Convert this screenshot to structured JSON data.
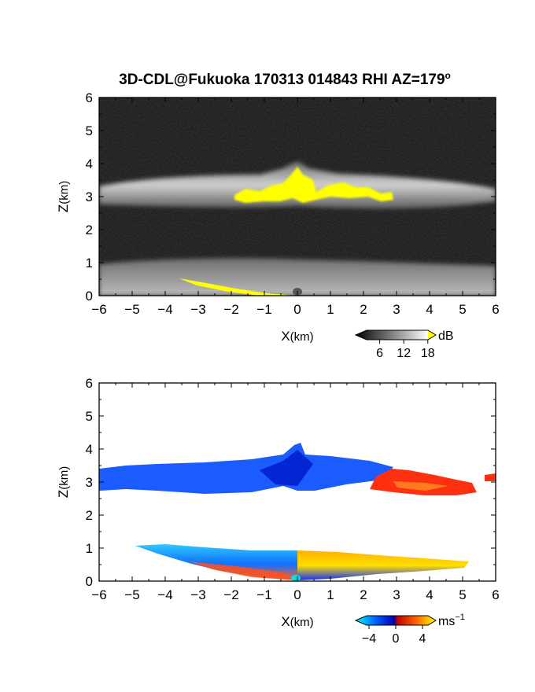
{
  "chart_data": [
    {
      "type": "heatmap",
      "panel": "reflectivity",
      "title_main": "3D-CDL@Fukuoka 170313 014843 RHI AZ=179",
      "title_sup": "o",
      "xlabel_main": "X",
      "xlabel_unit": "(km)",
      "ylabel_main": "Z",
      "ylabel_unit": "(km)",
      "xlim": [
        -6,
        6
      ],
      "ylim": [
        0,
        6
      ],
      "xticks": [
        -6,
        -5,
        -4,
        -3,
        -2,
        -1,
        0,
        1,
        2,
        3,
        4,
        5,
        6
      ],
      "yticks": [
        0,
        1,
        2,
        3,
        4,
        5,
        6
      ],
      "x_tick_labels": [
        "−6",
        "−5",
        "−4",
        "−3",
        "−2",
        "−1",
        "0",
        "1",
        "2",
        "3",
        "4",
        "5",
        "6"
      ],
      "y_tick_labels": [
        "0",
        "1",
        "2",
        "3",
        "4",
        "5",
        "6"
      ],
      "colorbar": {
        "unit_main": "dB",
        "unit_sup": "",
        "ticks": [
          6,
          12,
          18
        ],
        "tick_labels": [
          "6",
          "12",
          "18"
        ],
        "range": [
          0,
          20
        ],
        "colors": [
          "#000000",
          "#ffffff",
          "#ffff00"
        ]
      },
      "features": [
        {
          "name": "upper cloud layer",
          "x": [
            -6,
            6
          ],
          "z": [
            2.7,
            3.3
          ],
          "approx_dB": 10
        },
        {
          "name": "upper cloud core",
          "x": [
            -1.8,
            3.0
          ],
          "z": [
            2.85,
            4.2
          ],
          "approx_dB": 19
        },
        {
          "name": "lower echo layer",
          "x": [
            -6,
            6
          ],
          "z": [
            0,
            1.0
          ],
          "approx_dB": 9
        },
        {
          "name": "near-ground strong echo",
          "x": [
            -3.5,
            -0.7
          ],
          "z": [
            0,
            0.5
          ],
          "approx_dB": 19
        }
      ]
    },
    {
      "type": "heatmap",
      "panel": "doppler_velocity",
      "xlabel_main": "X",
      "xlabel_unit": "(km)",
      "ylabel_main": "Z",
      "ylabel_unit": "(km)",
      "xlim": [
        -6,
        6
      ],
      "ylim": [
        0,
        6
      ],
      "xticks": [
        -6,
        -5,
        -4,
        -3,
        -2,
        -1,
        0,
        1,
        2,
        3,
        4,
        5,
        6
      ],
      "yticks": [
        0,
        1,
        2,
        3,
        4,
        5,
        6
      ],
      "x_tick_labels": [
        "−6",
        "−5",
        "−4",
        "−3",
        "−2",
        "−1",
        "0",
        "1",
        "2",
        "3",
        "4",
        "5",
        "6"
      ],
      "y_tick_labels": [
        "0",
        "1",
        "2",
        "3",
        "4",
        "5",
        "6"
      ],
      "colorbar": {
        "unit_main": "ms",
        "unit_sup": "−1",
        "ticks": [
          -4,
          0,
          4
        ],
        "tick_labels": [
          "−4",
          "0",
          "4"
        ],
        "range": [
          -6,
          6
        ],
        "colors": [
          "#00ffff",
          "#0050ff",
          "#0000c0",
          "#ff0000",
          "#ff8000",
          "#ffff00"
        ]
      },
      "features": [
        {
          "name": "upper layer (approaching)",
          "x": [
            -6,
            2.0
          ],
          "z": [
            2.7,
            4.1
          ],
          "approx_velocity": -3
        },
        {
          "name": "upper layer (receding)",
          "x": [
            2.0,
            5.5
          ],
          "z": [
            2.7,
            3.4
          ],
          "approx_velocity": 2
        },
        {
          "name": "lower layer (approaching)",
          "x": [
            -5.0,
            0
          ],
          "z": [
            0.3,
            1.0
          ],
          "approx_velocity": -5
        },
        {
          "name": "lower layer (receding)",
          "x": [
            0,
            5.3
          ],
          "z": [
            0.3,
            1.0
          ],
          "approx_velocity": 4
        }
      ]
    }
  ]
}
